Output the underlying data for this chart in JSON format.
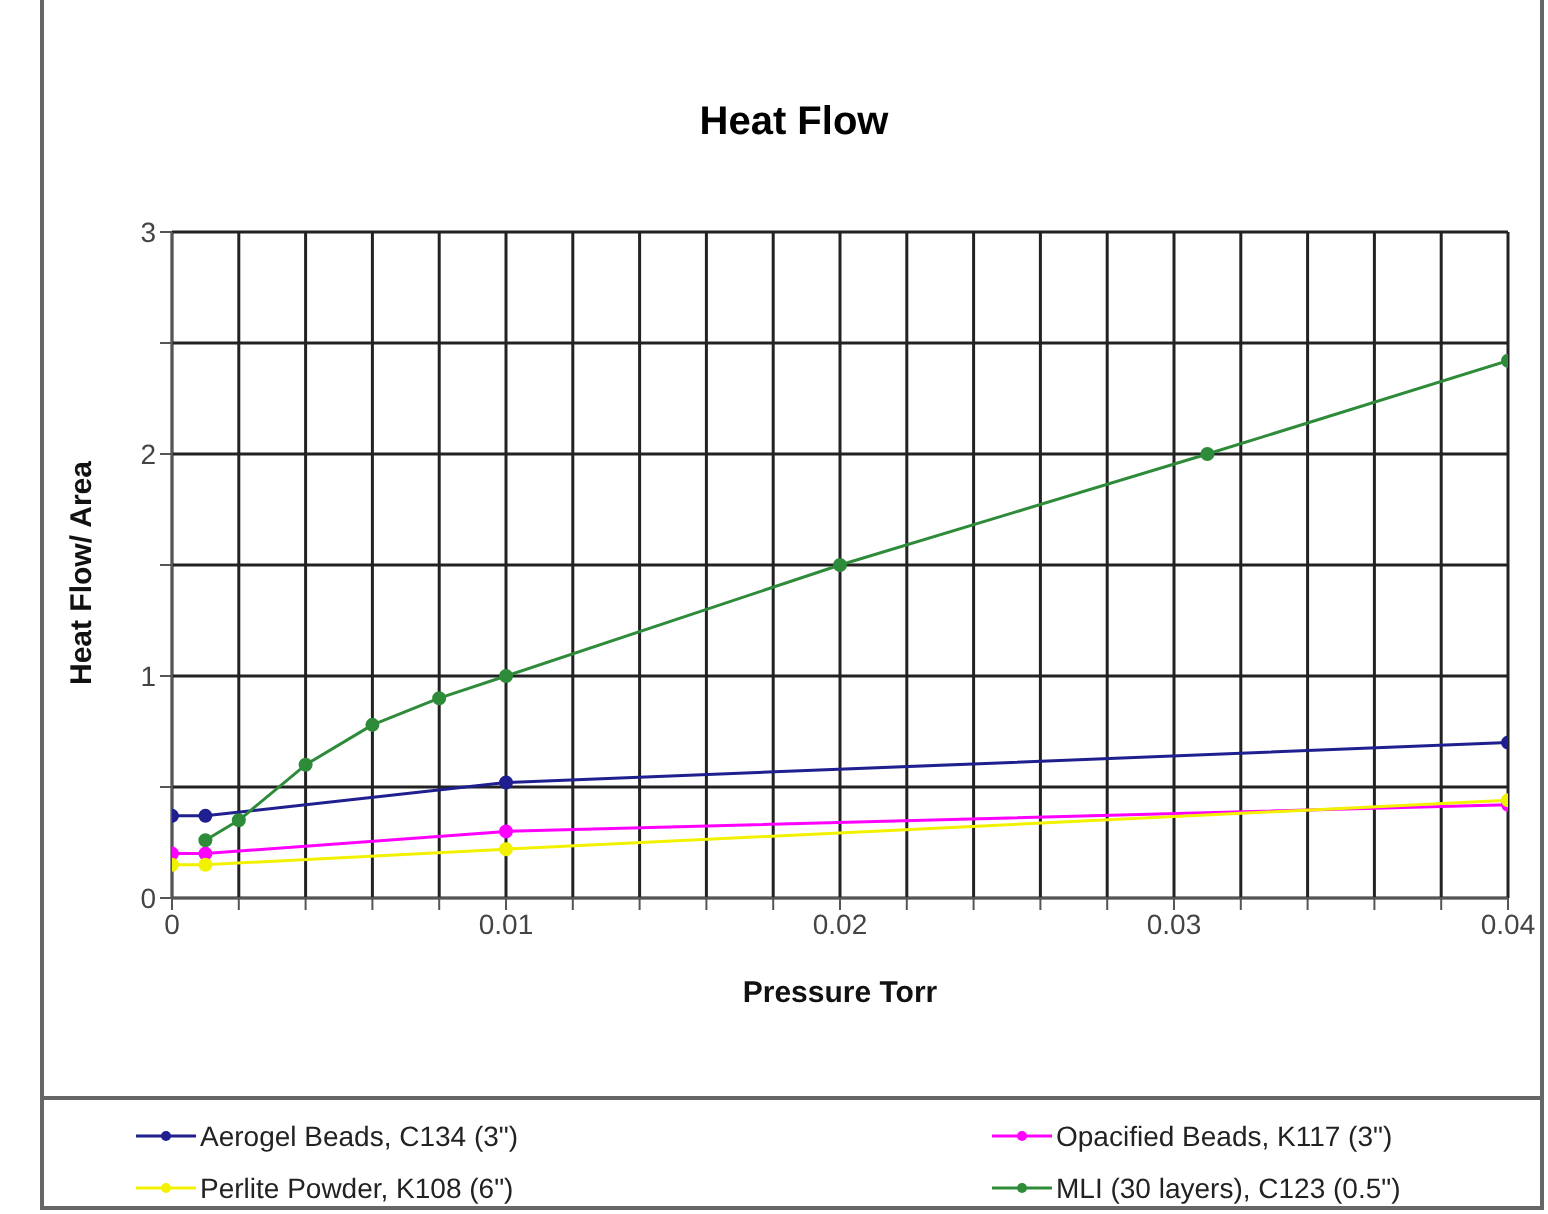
{
  "chart_data": {
    "type": "line",
    "title": "Heat Flow",
    "xlabel": "Pressure Torr",
    "ylabel": "Heat Flow/ Area",
    "xlim": [
      0,
      0.04
    ],
    "ylim": [
      0,
      3
    ],
    "xticks": [
      0,
      {
        "value": 0.002,
        "label": null
      },
      {
        "value": 0.004,
        "label": null
      },
      {
        "value": 0.006,
        "label": null
      },
      {
        "value": 0.008,
        "label": null
      },
      0.01,
      {
        "value": 0.012,
        "label": null
      },
      {
        "value": 0.014,
        "label": null
      },
      {
        "value": 0.016,
        "label": null
      },
      {
        "value": 0.018,
        "label": null
      },
      0.02,
      {
        "value": 0.022,
        "label": null
      },
      {
        "value": 0.024,
        "label": null
      },
      {
        "value": 0.026,
        "label": null
      },
      {
        "value": 0.028,
        "label": null
      },
      0.03,
      {
        "value": 0.032,
        "label": null
      },
      {
        "value": 0.034,
        "label": null
      },
      {
        "value": 0.036,
        "label": null
      },
      {
        "value": 0.038,
        "label": null
      },
      0.04
    ],
    "yticks": [
      0,
      {
        "value": 0.5,
        "label": null
      },
      1,
      {
        "value": 1.5,
        "label": null
      },
      2,
      {
        "value": 2.5,
        "label": null
      },
      3
    ],
    "grid": true,
    "legend": "bottom",
    "marker": "circle",
    "series": [
      {
        "name": "Aerogel Beads, C134 (3\")",
        "color": "#1f1f8f",
        "x": [
          0,
          0.001,
          0.01,
          0.04
        ],
        "values": [
          0.37,
          0.37,
          0.52,
          0.7
        ]
      },
      {
        "name": "Opacified Beads, K117 (3\")",
        "color": "#ff00ff",
        "x": [
          0,
          0.001,
          0.01,
          0.04
        ],
        "values": [
          0.2,
          0.2,
          0.3,
          0.42
        ]
      },
      {
        "name": "Perlite Powder, K108 (6\")",
        "color": "#f2f200",
        "x": [
          0,
          0.001,
          0.01,
          0.04
        ],
        "values": [
          0.15,
          0.15,
          0.22,
          0.44
        ]
      },
      {
        "name": "MLI (30 layers), C123 (0.5\")",
        "color": "#2e8b3a",
        "x": [
          0.001,
          0.002,
          0.004,
          0.006,
          0.008,
          0.01,
          0.02,
          0.031,
          0.04
        ],
        "values": [
          0.26,
          0.35,
          0.6,
          0.78,
          0.9,
          1.0,
          1.5,
          2.0,
          2.42
        ]
      }
    ]
  }
}
